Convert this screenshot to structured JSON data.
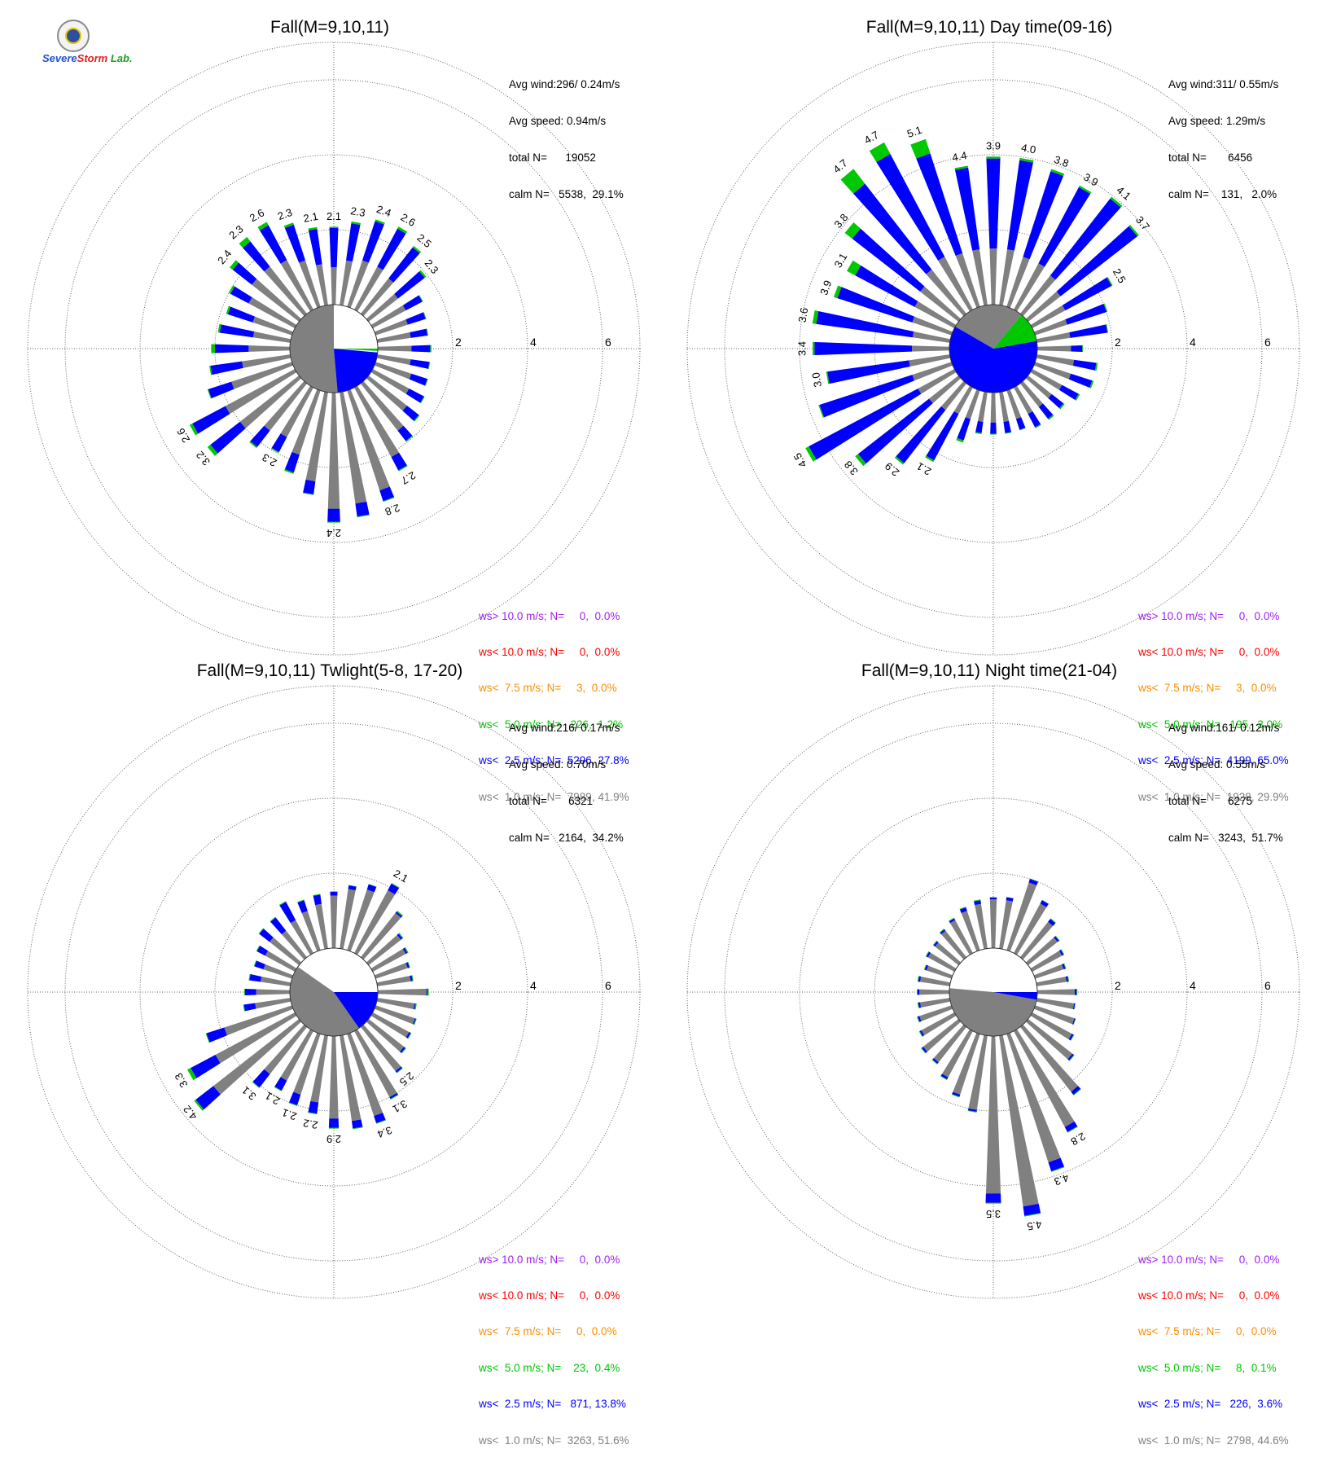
{
  "logo": {
    "line1": "Severe",
    "line2": "Storm",
    "line3": "Lab."
  },
  "colors": {
    "gt10": "#a020f0",
    "lt10": "#ff0000",
    "lt75": "#ff8c00",
    "lt50": "#00c800",
    "lt25": "#0000ff",
    "lt10ms": "#808080"
  },
  "panels": [
    {
      "title": "Fall(M=9,10,11)",
      "stats": [
        "Avg wind:296/ 0.24m/s",
        "Avg speed: 0.94m/s",
        "total N=      19052",
        "calm N=   5538,  29.1%"
      ],
      "legend": [
        "ws> 10.0 m/s; N=     0,  0.0%",
        "ws< 10.0 m/s; N=     0,  0.0%",
        "ws<  7.5 m/s; N=     3,  0.0%",
        "ws<  5.0 m/s; N=   226,  1.2%",
        "ws<  2.5 m/s; N=  5296, 27.8%",
        "ws<  1.0 m/s; N=  7989, 41.9%"
      ]
    },
    {
      "title": "Fall(M=9,10,11) Day time(09-16)",
      "stats": [
        "Avg wind:311/ 0.55m/s",
        "Avg speed: 1.29m/s",
        "total N=       6456",
        "calm N=    131,   2.0%"
      ],
      "legend": [
        "ws> 10.0 m/s; N=     0,  0.0%",
        "ws< 10.0 m/s; N=     0,  0.0%",
        "ws<  7.5 m/s; N=     3,  0.0%",
        "ws<  5.0 m/s; N=   195,  3.0%",
        "ws<  2.5 m/s; N=  4199, 65.0%",
        "ws<  1.0 m/s; N=  1928, 29.9%"
      ]
    },
    {
      "title": "Fall(M=9,10,11) Twlight(5-8, 17-20)",
      "stats": [
        "Avg wind:216/ 0.17m/s",
        "Avg speed: 0.70m/s",
        "total N=       6321",
        "calm N=   2164,  34.2%"
      ],
      "legend": [
        "ws> 10.0 m/s; N=     0,  0.0%",
        "ws< 10.0 m/s; N=     0,  0.0%",
        "ws<  7.5 m/s; N=     0,  0.0%",
        "ws<  5.0 m/s; N=    23,  0.4%",
        "ws<  2.5 m/s; N=   871, 13.8%",
        "ws<  1.0 m/s; N=  3263, 51.6%"
      ]
    },
    {
      "title": "Fall(M=9,10,11) Night time(21-04)",
      "stats": [
        "Avg wind:161/ 0.12m/s",
        "Avg speed: 0.55m/s",
        "total N=       6275",
        "calm N=   3243,  51.7%"
      ],
      "legend": [
        "ws> 10.0 m/s; N=     0,  0.0%",
        "ws< 10.0 m/s; N=     0,  0.0%",
        "ws<  7.5 m/s; N=     0,  0.0%",
        "ws<  5.0 m/s; N=     8,  0.1%",
        "ws<  2.5 m/s; N=   226,  3.6%",
        "ws<  1.0 m/s; N=  2798, 44.6%"
      ]
    }
  ],
  "chart_data": [
    {
      "type": "windrose",
      "title": "Fall(M=9,10,11)",
      "radial_ticks": [
        2,
        4,
        6
      ],
      "rmax": 7,
      "calm_center": {
        "white_deg": [
          0,
          95
        ],
        "blue_deg": [
          95,
          175
        ],
        "gray_deg": [
          175,
          360
        ],
        "green_deg": [
          90,
          93
        ]
      },
      "directions_deg": [
        0,
        10,
        20,
        30,
        40,
        50,
        60,
        70,
        80,
        90,
        100,
        110,
        120,
        130,
        140,
        150,
        160,
        170,
        180,
        190,
        200,
        210,
        220,
        230,
        240,
        250,
        260,
        270,
        280,
        290,
        300,
        310,
        320,
        330,
        340,
        350
      ],
      "gray": [
        1.0,
        1.2,
        1.3,
        1.3,
        1.2,
        1.0,
        1.0,
        0.9,
        0.9,
        0.9,
        0.9,
        1.0,
        1.1,
        1.3,
        1.6,
        2.1,
        2.8,
        3.0,
        3.1,
        2.4,
        1.8,
        1.5,
        1.6,
        2.0,
        2.1,
        1.7,
        1.3,
        1.1,
        1.0,
        1.1,
        1.4,
        1.6,
        1.6,
        1.5,
        1.3,
        1.1
      ],
      "blue": [
        1.05,
        1.0,
        1.1,
        1.15,
        1.05,
        0.9,
        0.5,
        0.5,
        0.45,
        0.5,
        0.5,
        0.45,
        0.45,
        0.4,
        0.35,
        0.4,
        0.3,
        0.35,
        0.35,
        0.35,
        0.5,
        0.45,
        0.55,
        1.0,
        1.0,
        0.65,
        0.85,
        0.9,
        0.9,
        0.7,
        0.55,
        0.65,
        0.85,
        1.05,
        1.0,
        0.95
      ],
      "green": [
        0.03,
        0.05,
        0.05,
        0.06,
        0.05,
        0.05,
        0.02,
        0.02,
        0.02,
        0.03,
        0.02,
        0.02,
        0.02,
        0.03,
        0.03,
        0.03,
        0.02,
        0.02,
        0.02,
        0.02,
        0.04,
        0.03,
        0.04,
        0.1,
        0.08,
        0.02,
        0.03,
        0.1,
        0.05,
        0.05,
        0.05,
        0.1,
        0.15,
        0.1,
        0.06,
        0.05
      ],
      "labels": [
        "2.1",
        "2.3",
        "2.4",
        "2.6",
        "2.5",
        "2.3",
        "",
        "",
        "",
        "",
        "",
        "",
        "",
        "",
        "",
        "2.7",
        "2.8",
        "",
        "2.4",
        "",
        "",
        "2.3",
        "",
        "3.2",
        "2.6",
        "",
        "",
        "",
        "",
        "",
        "",
        "2.4",
        "2.3",
        "2.6",
        "2.3",
        "2.1"
      ]
    },
    {
      "type": "windrose",
      "title": "Fall(M=9,10,11) Day time(09-16)",
      "radial_ticks": [
        2,
        4,
        6
      ],
      "rmax": 7,
      "calm_center": {
        "white_deg": [],
        "blue_deg": [
          80,
          300
        ],
        "gray_deg": [
          300,
          40
        ],
        "green_deg": [
          40,
          80
        ]
      },
      "directions_deg": [
        0,
        10,
        20,
        30,
        40,
        50,
        60,
        70,
        80,
        90,
        100,
        110,
        120,
        130,
        140,
        150,
        160,
        170,
        180,
        190,
        200,
        210,
        220,
        230,
        240,
        250,
        260,
        270,
        280,
        290,
        300,
        310,
        320,
        330,
        340,
        350
      ],
      "gray": [
        1.5,
        1.5,
        1.4,
        1.4,
        1.3,
        1.1,
        1.0,
        0.9,
        0.9,
        0.9,
        1.0,
        1.0,
        0.9,
        0.8,
        0.8,
        0.8,
        0.8,
        0.8,
        0.8,
        0.8,
        0.8,
        0.8,
        0.9,
        1.0,
        1.1,
        1.1,
        1.1,
        1.0,
        1.0,
        1.1,
        1.2,
        1.3,
        1.5,
        1.6,
        1.5,
        1.5
      ],
      "blue": [
        2.4,
        2.4,
        2.4,
        2.3,
        2.6,
        2.6,
        1.4,
        1.1,
        1.0,
        0.3,
        0.6,
        0.6,
        0.5,
        0.4,
        0.4,
        0.4,
        0.3,
        0.3,
        0.3,
        0.3,
        0.6,
        1.4,
        1.8,
        2.4,
        3.3,
        2.6,
        2.2,
        2.6,
        2.6,
        2.1,
        1.8,
        2.3,
        2.9,
        3.1,
        2.8,
        2.2
      ],
      "green": [
        0.05,
        0.06,
        0.06,
        0.05,
        0.06,
        0.05,
        0.03,
        0.03,
        0.02,
        0.02,
        0.04,
        0.04,
        0.04,
        0.04,
        0.04,
        0.03,
        0.02,
        0.02,
        0.02,
        0.03,
        0.06,
        0.05,
        0.05,
        0.1,
        0.1,
        0.03,
        0.03,
        0.05,
        0.1,
        0.1,
        0.25,
        0.25,
        0.5,
        0.35,
        0.4,
        0.05
      ],
      "labels": [
        "3.9",
        "4.0",
        "3.8",
        "3.9",
        "4.1",
        "3.7",
        "2.5",
        "",
        "",
        "",
        "",
        "",
        "",
        "",
        "",
        "",
        "",
        "",
        "",
        "",
        "",
        "2.1",
        "2.9",
        "3.8",
        "4.5",
        "",
        "3.0",
        "3.4",
        "3.6",
        "3.9",
        "3.1",
        "3.8",
        "4.7",
        "4.7",
        "5.1",
        "4.4"
      ],
      "labels_extra": {
        "350b": "3.8"
      }
    },
    {
      "type": "windrose",
      "title": "Fall(M=9,10,11) Twlight(5-8, 17-20)",
      "radial_ticks": [
        2,
        4,
        6
      ],
      "rmax": 7,
      "calm_center": {
        "white_deg": [
          305,
          90
        ],
        "blue_deg": [
          90,
          145
        ],
        "gray_deg": [
          145,
          305
        ],
        "green_deg": []
      },
      "directions_deg": [
        0,
        10,
        20,
        30,
        40,
        50,
        60,
        70,
        80,
        90,
        100,
        110,
        120,
        130,
        140,
        150,
        160,
        170,
        180,
        190,
        200,
        210,
        220,
        230,
        240,
        250,
        260,
        270,
        280,
        290,
        300,
        310,
        320,
        330,
        340,
        350
      ],
      "gray": [
        1.4,
        1.6,
        1.7,
        1.9,
        1.5,
        1.1,
        1.0,
        0.9,
        0.9,
        1.3,
        1.0,
        1.1,
        1.1,
        1.2,
        1.5,
        2.0,
        2.3,
        2.3,
        2.2,
        1.8,
        1.7,
        1.5,
        1.6,
        2.9,
        2.4,
        1.9,
        0.95,
        0.9,
        0.8,
        0.8,
        0.9,
        1.0,
        0.9,
        1.0,
        1.1,
        1.2
      ],
      "blue": [
        0.1,
        0.1,
        0.15,
        0.2,
        0.05,
        0.05,
        0.05,
        0.05,
        0.05,
        0.03,
        0.03,
        0.03,
        0.05,
        0.05,
        0.05,
        0.05,
        0.2,
        0.2,
        0.25,
        0.3,
        0.3,
        0.3,
        0.45,
        0.6,
        0.75,
        0.5,
        0.3,
        0.3,
        0.3,
        0.25,
        0.25,
        0.35,
        0.45,
        0.55,
        0.3,
        0.25
      ],
      "green": [
        0.01,
        0.01,
        0.01,
        0.02,
        0.03,
        0.03,
        0.03,
        0.02,
        0.02,
        0.03,
        0.03,
        0.02,
        0.02,
        0.02,
        0.02,
        0.02,
        0.02,
        0.02,
        0.02,
        0.02,
        0.02,
        0.02,
        0.02,
        0.05,
        0.1,
        0.02,
        0.02,
        0.02,
        0.02,
        0.02,
        0.02,
        0.02,
        0.02,
        0.02,
        0.02,
        0.02
      ],
      "labels": [
        "",
        "",
        "",
        "2.1",
        "",
        "",
        "",
        "",
        "",
        "",
        "",
        "",
        "",
        "",
        "2.5",
        "3.1",
        "3.4",
        "",
        "2.9",
        "2.2",
        "2.1",
        "2.1",
        "3.1",
        "4.2",
        "3.3",
        "",
        "",
        "",
        "",
        "",
        "",
        "",
        "",
        "",
        "",
        ""
      ]
    },
    {
      "type": "windrose",
      "title": "Fall(M=9,10,11) Night time(21-04)",
      "radial_ticks": [
        2,
        4,
        6
      ],
      "rmax": 7,
      "calm_center": {
        "white_deg": [
          275,
          90
        ],
        "blue_deg": [
          90,
          100
        ],
        "gray_deg": [
          100,
          275
        ],
        "green_deg": []
      },
      "directions_deg": [
        0,
        10,
        20,
        30,
        40,
        50,
        60,
        70,
        80,
        90,
        100,
        110,
        120,
        130,
        140,
        150,
        160,
        170,
        180,
        190,
        200,
        210,
        220,
        230,
        240,
        250,
        260,
        270,
        280,
        290,
        300,
        310,
        320,
        330,
        340,
        350
      ],
      "gray": [
        1.3,
        1.3,
        1.9,
        1.5,
        1.2,
        1.0,
        0.9,
        0.8,
        0.8,
        1.0,
        1.0,
        1.1,
        1.2,
        1.5,
        2.2,
        2.9,
        3.6,
        4.6,
        4.2,
        2.0,
        1.7,
        1.4,
        1.2,
        1.2,
        1.0,
        0.9,
        0.8,
        0.8,
        0.8,
        0.7,
        0.8,
        0.8,
        0.9,
        1.0,
        1.1,
        1.2
      ],
      "blue": [
        0.05,
        0.08,
        0.1,
        0.1,
        0.1,
        0.05,
        0.05,
        0.05,
        0.05,
        0.05,
        0.03,
        0.03,
        0.05,
        0.05,
        0.1,
        0.15,
        0.25,
        0.25,
        0.25,
        0.05,
        0.06,
        0.06,
        0.05,
        0.05,
        0.05,
        0.05,
        0.05,
        0.05,
        0.05,
        0.05,
        0.05,
        0.05,
        0.05,
        0.05,
        0.1,
        0.1
      ],
      "green": [
        0.01,
        0.01,
        0.01,
        0.01,
        0.02,
        0.02,
        0.02,
        0.02,
        0.02,
        0.02,
        0.01,
        0.01,
        0.02,
        0.02,
        0.02,
        0.02,
        0.02,
        0.02,
        0.02,
        0.02,
        0.02,
        0.02,
        0.02,
        0.02,
        0.02,
        0.02,
        0.02,
        0.02,
        0.02,
        0.02,
        0.02,
        0.02,
        0.02,
        0.02,
        0.02,
        0.02
      ],
      "labels": [
        "",
        "",
        "",
        "",
        "",
        "",
        "",
        "",
        "",
        "",
        "",
        "",
        "",
        "",
        "",
        "2.8",
        "4.3",
        "4.5",
        "3.5",
        "",
        "",
        "",
        "",
        "",
        "",
        "",
        "",
        "",
        "",
        "",
        "",
        "",
        "",
        "",
        "",
        ""
      ]
    }
  ]
}
